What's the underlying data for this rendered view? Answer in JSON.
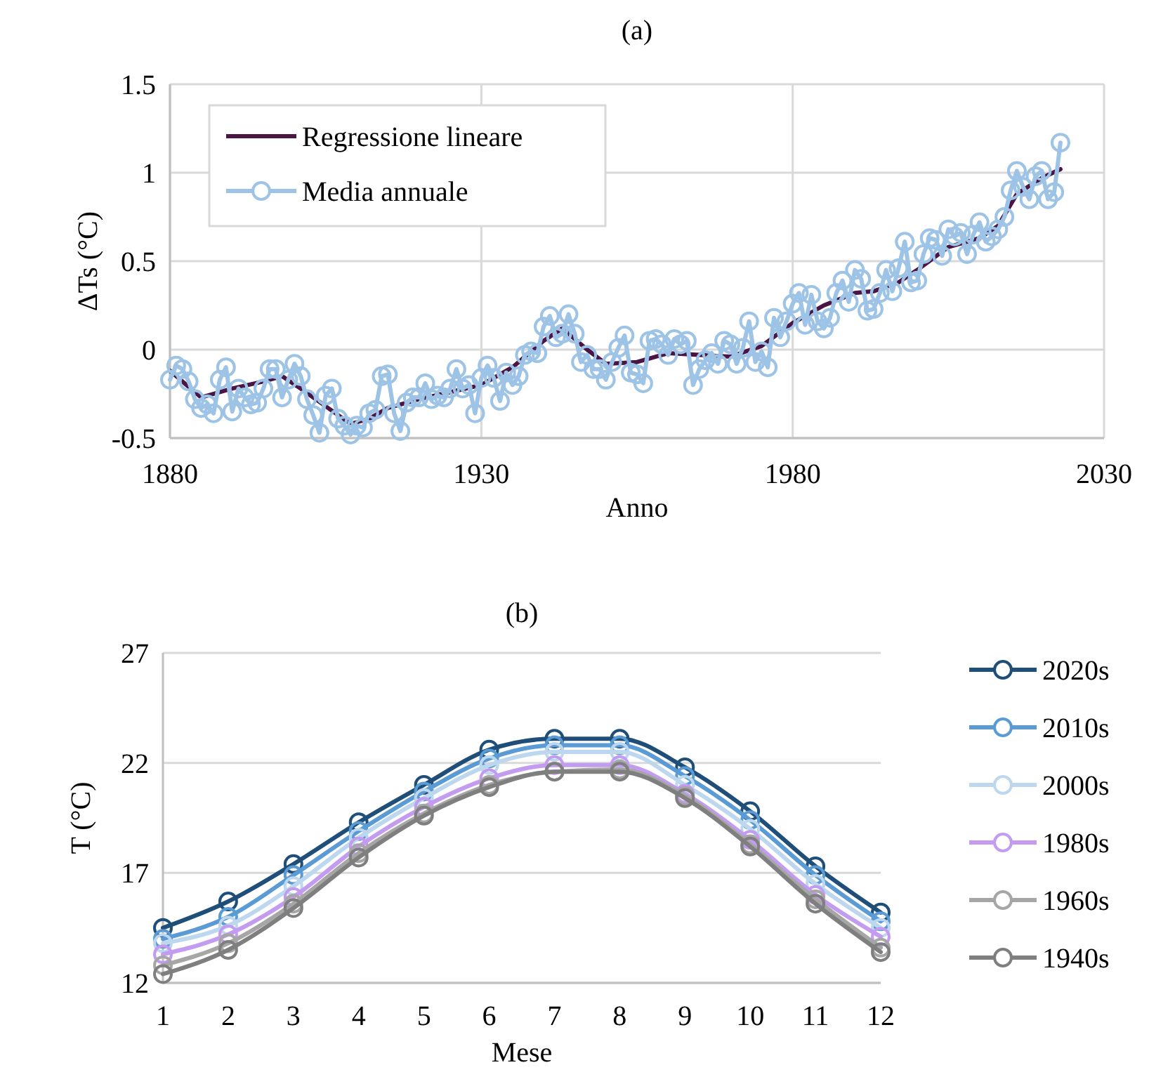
{
  "chart_data": [
    {
      "type": "line",
      "title": "(a)",
      "xlabel": "Anno",
      "ylabel": "ΔTs (°C)",
      "xlim": [
        1880,
        2030
      ],
      "xticks": [
        1880,
        1930,
        1980,
        2030
      ],
      "ylim": [
        -0.5,
        1.5
      ],
      "yticks": [
        -0.5,
        0,
        0.5,
        1,
        1.5
      ],
      "grid": true,
      "legend": "top left",
      "marker": "circle",
      "series": [
        {
          "name": "Regressione lineare",
          "color": "#4a1445",
          "marker": "none",
          "x": [
            1880,
            1885,
            1890,
            1895,
            1898,
            1901,
            1905,
            1909,
            1912,
            1915,
            1920,
            1925,
            1930,
            1935,
            1940,
            1943,
            1947,
            1950,
            1955,
            1960,
            1965,
            1970,
            1975,
            1980,
            1985,
            1990,
            1993,
            1997,
            2000,
            2005,
            2010,
            2013,
            2016,
            2020,
            2023
          ],
          "values": [
            -0.12,
            -0.27,
            -0.22,
            -0.18,
            -0.15,
            -0.22,
            -0.32,
            -0.42,
            -0.39,
            -0.33,
            -0.28,
            -0.24,
            -0.2,
            -0.1,
            0.05,
            0.12,
            0.0,
            -0.08,
            -0.07,
            -0.02,
            -0.03,
            -0.04,
            0.02,
            0.15,
            0.25,
            0.32,
            0.33,
            0.38,
            0.45,
            0.58,
            0.63,
            0.7,
            0.88,
            0.97,
            1.02
          ]
        },
        {
          "name": "Media annuale",
          "color": "#9dc3e6",
          "x": [
            1880,
            1881,
            1882,
            1883,
            1884,
            1885,
            1886,
            1887,
            1888,
            1889,
            1890,
            1891,
            1892,
            1893,
            1894,
            1895,
            1896,
            1897,
            1898,
            1899,
            1900,
            1901,
            1902,
            1903,
            1904,
            1905,
            1906,
            1907,
            1908,
            1909,
            1910,
            1911,
            1912,
            1913,
            1914,
            1915,
            1916,
            1917,
            1918,
            1919,
            1920,
            1921,
            1922,
            1923,
            1924,
            1925,
            1926,
            1927,
            1928,
            1929,
            1930,
            1931,
            1932,
            1933,
            1934,
            1935,
            1936,
            1937,
            1938,
            1939,
            1940,
            1941,
            1942,
            1943,
            1944,
            1945,
            1946,
            1947,
            1948,
            1949,
            1950,
            1951,
            1952,
            1953,
            1954,
            1955,
            1956,
            1957,
            1958,
            1959,
            1960,
            1961,
            1962,
            1963,
            1964,
            1965,
            1966,
            1967,
            1968,
            1969,
            1970,
            1971,
            1972,
            1973,
            1974,
            1975,
            1976,
            1977,
            1978,
            1979,
            1980,
            1981,
            1982,
            1983,
            1984,
            1985,
            1986,
            1987,
            1988,
            1989,
            1990,
            1991,
            1992,
            1993,
            1994,
            1995,
            1996,
            1997,
            1998,
            1999,
            2000,
            2001,
            2002,
            2003,
            2004,
            2005,
            2006,
            2007,
            2008,
            2009,
            2010,
            2011,
            2012,
            2013,
            2014,
            2015,
            2016,
            2017,
            2018,
            2019,
            2020,
            2021,
            2022,
            2023
          ],
          "values": [
            -0.17,
            -0.09,
            -0.11,
            -0.18,
            -0.28,
            -0.33,
            -0.31,
            -0.36,
            -0.17,
            -0.1,
            -0.35,
            -0.22,
            -0.27,
            -0.31,
            -0.3,
            -0.22,
            -0.11,
            -0.11,
            -0.27,
            -0.17,
            -0.08,
            -0.15,
            -0.28,
            -0.37,
            -0.47,
            -0.26,
            -0.22,
            -0.39,
            -0.43,
            -0.48,
            -0.43,
            -0.44,
            -0.36,
            -0.34,
            -0.15,
            -0.14,
            -0.36,
            -0.46,
            -0.3,
            -0.27,
            -0.27,
            -0.19,
            -0.28,
            -0.26,
            -0.27,
            -0.22,
            -0.11,
            -0.22,
            -0.2,
            -0.36,
            -0.16,
            -0.09,
            -0.16,
            -0.29,
            -0.13,
            -0.2,
            -0.15,
            -0.03,
            -0.01,
            -0.02,
            0.13,
            0.19,
            0.07,
            0.09,
            0.2,
            0.09,
            -0.07,
            -0.03,
            -0.11,
            -0.11,
            -0.17,
            -0.07,
            0.01,
            0.08,
            -0.13,
            -0.14,
            -0.19,
            0.05,
            0.06,
            0.03,
            -0.03,
            0.06,
            0.03,
            0.05,
            -0.2,
            -0.11,
            -0.06,
            -0.02,
            -0.08,
            0.05,
            0.03,
            -0.08,
            0.01,
            0.16,
            -0.07,
            -0.01,
            -0.1,
            0.18,
            0.07,
            0.16,
            0.26,
            0.32,
            0.14,
            0.31,
            0.16,
            0.12,
            0.18,
            0.32,
            0.39,
            0.27,
            0.45,
            0.4,
            0.22,
            0.23,
            0.32,
            0.45,
            0.33,
            0.46,
            0.61,
            0.38,
            0.39,
            0.54,
            0.63,
            0.62,
            0.53,
            0.68,
            0.64,
            0.66,
            0.54,
            0.65,
            0.72,
            0.61,
            0.64,
            0.68,
            0.75,
            0.9,
            1.01,
            0.92,
            0.85,
            0.98,
            1.01,
            0.85,
            0.89,
            1.17
          ]
        }
      ]
    },
    {
      "type": "line",
      "title": "(b)",
      "xlabel": "Mese",
      "ylabel": "T (°C)",
      "categories": [
        "1",
        "2",
        "3",
        "4",
        "5",
        "6",
        "7",
        "8",
        "9",
        "10",
        "11",
        "12"
      ],
      "ylim": [
        12,
        27
      ],
      "yticks": [
        12,
        17,
        22,
        27
      ],
      "grid": "y",
      "legend": "right",
      "marker": "circle",
      "series": [
        {
          "name": "2020s",
          "color": "#1f4e79",
          "values": [
            14.5,
            15.7,
            17.4,
            19.3,
            21.0,
            22.6,
            23.1,
            23.1,
            21.8,
            19.8,
            17.3,
            15.2
          ]
        },
        {
          "name": "2010s",
          "color": "#5b9bd5",
          "values": [
            14.0,
            15.0,
            16.9,
            18.9,
            20.7,
            22.2,
            22.8,
            22.8,
            21.4,
            19.4,
            16.9,
            14.8
          ]
        },
        {
          "name": "2000s",
          "color": "#bdd7ee",
          "values": [
            13.8,
            14.6,
            16.4,
            18.6,
            20.4,
            21.9,
            22.5,
            22.5,
            21.0,
            19.0,
            16.5,
            14.5
          ]
        },
        {
          "name": "1980s",
          "color": "#c39bf0",
          "values": [
            13.3,
            14.2,
            15.9,
            18.2,
            20.0,
            21.3,
            21.9,
            21.9,
            20.6,
            18.5,
            16.0,
            14.1
          ]
        },
        {
          "name": "1960s",
          "color": "#a6a6a6",
          "values": [
            12.8,
            13.8,
            15.6,
            17.9,
            19.7,
            21.0,
            21.6,
            21.7,
            20.5,
            18.3,
            15.8,
            13.6
          ]
        },
        {
          "name": "1940s",
          "color": "#7f7f7f",
          "values": [
            12.4,
            13.5,
            15.4,
            17.7,
            19.6,
            20.9,
            21.6,
            21.6,
            20.4,
            18.2,
            15.6,
            13.4
          ]
        }
      ]
    }
  ]
}
